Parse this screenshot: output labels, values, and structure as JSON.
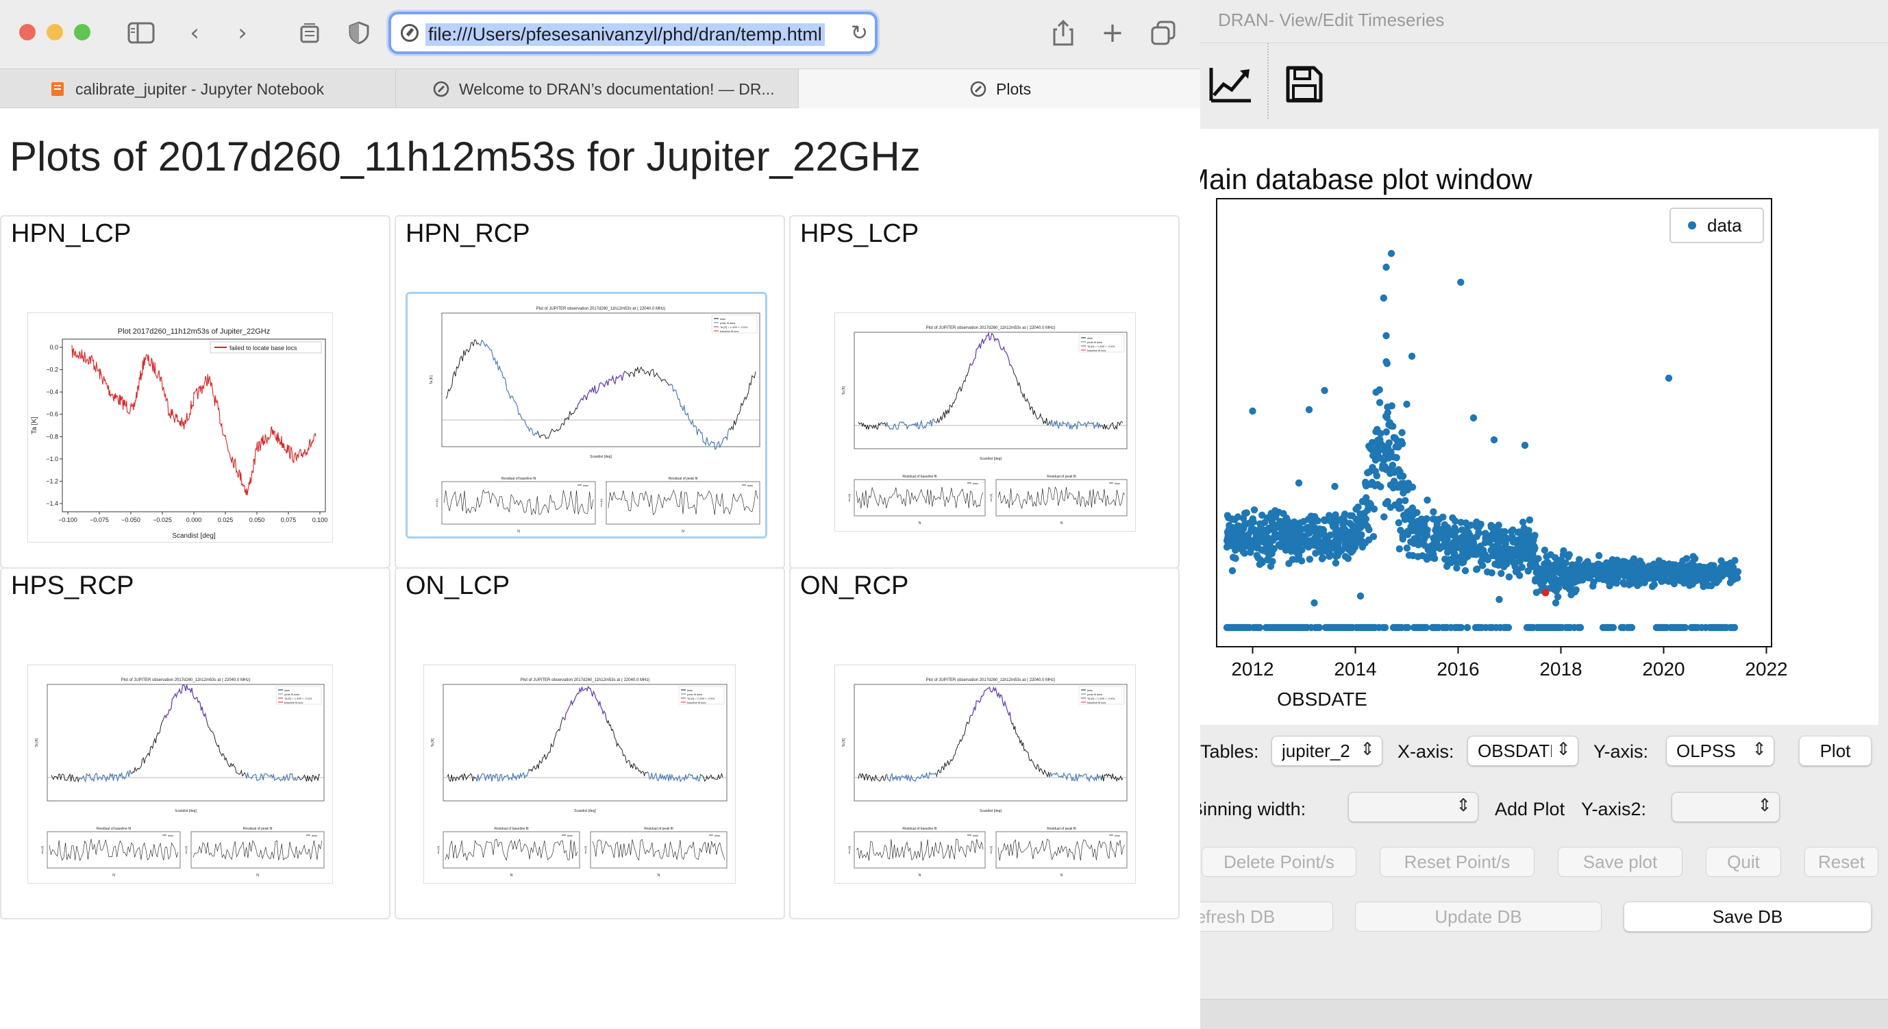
{
  "browser": {
    "url": "file:///Users/pfesesanivanzyl/phd/dran/temp.html",
    "tabs": [
      {
        "label": "calibrate_jupiter - Jupyter Notebook",
        "icon": "jupyter-icon"
      },
      {
        "label": "Welcome to DRAN’s documentation! — DR...",
        "icon": "compass-icon"
      },
      {
        "label": "Plots",
        "icon": "compass-icon"
      }
    ],
    "colors": {
      "close": "#ed6a5e",
      "minimize": "#f5bf4f",
      "zoom": "#61c554",
      "url_focus": "#7aa3f0"
    }
  },
  "page": {
    "title": "Plots of 2017d260_11h12m53s for Jupiter_22GHz",
    "cells": [
      {
        "label": "HPN_LCP"
      },
      {
        "label": "HPN_RCP"
      },
      {
        "label": "HPS_LCP"
      },
      {
        "label": "HPS_RCP"
      },
      {
        "label": "ON_LCP"
      },
      {
        "label": "ON_RCP"
      }
    ]
  },
  "thumb_hpn_lcp": {
    "title": "Plot 2017d260_11h12m53s of Jupiter_22GHz",
    "legend": "failed to locate base locs",
    "xlabel": "Scandist [deg]",
    "ylabel": "Ta [K]",
    "xticks": [
      "−0.100",
      "−0.075",
      "−0.050",
      "−0.025",
      "0.000",
      "0.025",
      "0.050",
      "0.075",
      "0.100"
    ],
    "yticks": [
      "0.0",
      "−0.2",
      "−0.4",
      "−0.6",
      "−0.8",
      "−1.0",
      "−1.2",
      "−1.4"
    ]
  },
  "thumb_fit": {
    "title": "Plot of JUPITER observation 2017d260_11h12m53s at ( 22040.0 MHz)",
    "legend": [
      "data",
      "peak fit data",
      "Ta [K] = 1.499 +- 0.031",
      "baseline fit locs"
    ],
    "xlabel": "Scandist [deg]",
    "ylabel": "Ta [K]",
    "res_baseline_title": "Residual of baseline fit",
    "res_peak_title": "Residual of peak fit",
    "res_ylabel": "res [K]",
    "res_xlabel": "N",
    "res_legend": "data"
  },
  "dran": {
    "window_title": "DRAN- View/Edit Timeseries",
    "toolbar_icons": [
      "chart-icon",
      "save-icon"
    ],
    "plot_title": "Main database plot window",
    "tables_label": "Tables:",
    "tables_value": "jupiter_2",
    "xaxis_label": "X-axis:",
    "xaxis_value": "OBSDATE",
    "yaxis_label": "Y-axis:",
    "yaxis_value": "OLPSS",
    "plot_button": "Plot",
    "binning_label": "Binning width:",
    "add_plot_label": "Add Plot",
    "yaxis2_label": "Y-axis2:",
    "buttons_row1": [
      "Delete Point/s",
      "Reset Point/s",
      "Save plot",
      "Quit",
      "Reset"
    ],
    "refresh_db": "Refresh DB",
    "update_db": "Update DB",
    "save_db": "Save DB"
  },
  "chart_data": {
    "type": "scatter",
    "title": "Main database plot window",
    "xlabel": "OBSDATE",
    "ylabel": "",
    "xlim": [
      2011.3,
      2022.1
    ],
    "xticks": [
      "2012",
      "2014",
      "2016",
      "2018",
      "2020",
      "2022"
    ],
    "legend": {
      "entries": [
        "data"
      ],
      "placement": "top-right"
    },
    "grid": false,
    "series": [
      {
        "name": "data",
        "color": "#1f77b4"
      },
      {
        "color": "#d62728",
        "x": [
          2017.7
        ],
        "note_value": "selected"
      }
    ]
  }
}
